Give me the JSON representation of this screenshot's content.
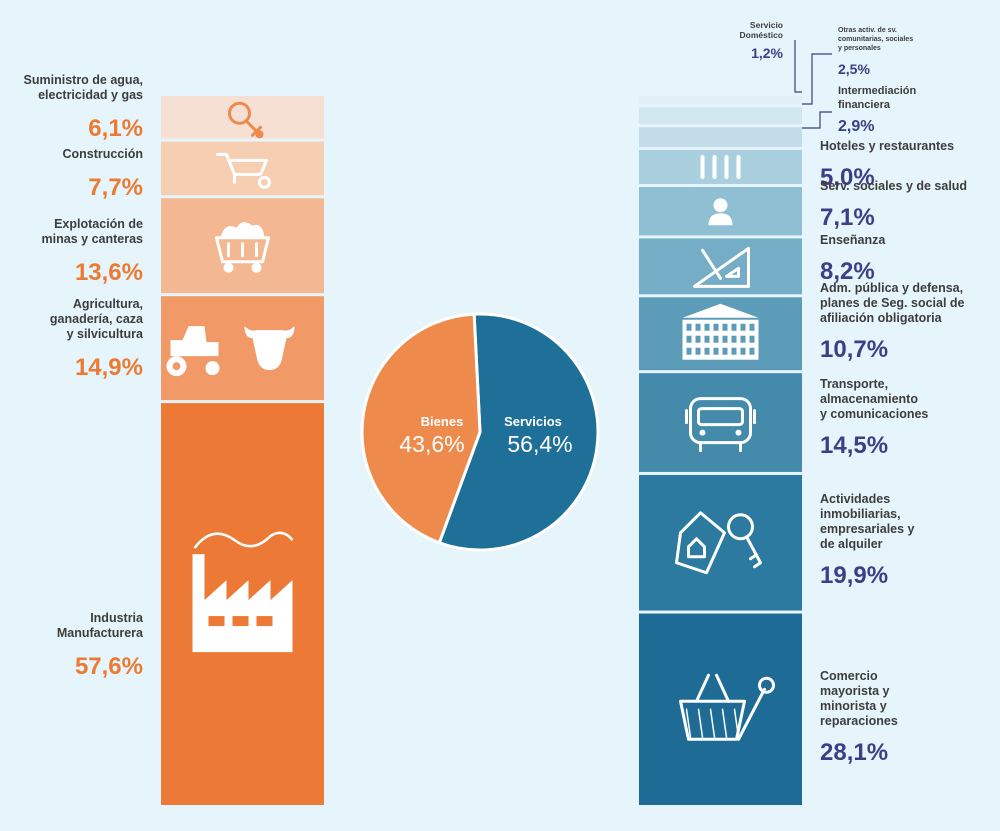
{
  "colors": {
    "background": "#e6f5fb",
    "goods_text": "#ec7a32",
    "services_text": "#3a3f87",
    "goods_pie": "#ee8a4b",
    "services_pie": "#1f7099",
    "label_dark": "#3d3d3d",
    "icon_white": "#ffffff"
  },
  "chart_data": [
    {
      "type": "pie",
      "slices": [
        {
          "label": "Bienes",
          "value": 43.6,
          "value_text": "43,6%",
          "color": "#ee8a4b"
        },
        {
          "label": "Servicios",
          "value": 56.4,
          "value_text": "56,4%",
          "color": "#1f7099"
        }
      ]
    },
    {
      "type": "bar",
      "stacked": true,
      "series_group": "Bienes",
      "segments": [
        {
          "label": "Suministro de agua, electricidad y gas",
          "lines": [
            "Suministro de agua,",
            "electricidad y gas"
          ],
          "value": 6.1,
          "value_text": "6,1%",
          "color": "#f5e0d3",
          "icon": "lightbulb-icon"
        },
        {
          "label": "Construcción",
          "lines": [
            "Construcción"
          ],
          "value": 7.7,
          "value_text": "7,7%",
          "color": "#f6cfb3",
          "icon": "wheelbarrow-icon"
        },
        {
          "label": "Explotación de minas y canteras",
          "lines": [
            "Explotación de",
            "minas y canteras"
          ],
          "value": 13.6,
          "value_text": "13,6%",
          "color": "#f3b792",
          "icon": "mine-cart-icon"
        },
        {
          "label": "Agricultura, ganadería, caza y silvicultura",
          "lines": [
            "Agricultura,",
            "ganadería, caza",
            "y silvicultura"
          ],
          "value": 14.9,
          "value_text": "14,9%",
          "color": "#f19a67",
          "icon": "tractor-cow-icon"
        },
        {
          "label": "Industria Manufacturera",
          "lines": [
            "Industria",
            "Manufacturera"
          ],
          "value": 57.6,
          "value_text": "57,6%",
          "color": "#ec7a36",
          "icon": "factory-icon"
        }
      ]
    },
    {
      "type": "bar",
      "stacked": true,
      "series_group": "Servicios",
      "segments": [
        {
          "label": "Servicio Doméstico",
          "lines": [
            "Servicio",
            "Doméstico"
          ],
          "value": 1.2,
          "value_text": "1,2%",
          "color": "#e2f0f5",
          "icon": ""
        },
        {
          "label": "Otras activ. de sv. comunitarias, sociales y personales",
          "lines": [
            "Otras activ. de sv.",
            "comunitarias, sociales",
            "y personales"
          ],
          "value": 2.5,
          "value_text": "2,5%",
          "color": "#d2e7ef",
          "icon": ""
        },
        {
          "label": "Intermediación financiera",
          "lines": [
            "Intermediación",
            "financiera"
          ],
          "value": 2.9,
          "value_text": "2,9%",
          "color": "#c2dde9",
          "icon": ""
        },
        {
          "label": "Hoteles y restaurantes",
          "lines": [
            "Hoteles y restaurantes"
          ],
          "value": 5.0,
          "value_text": "5,0%",
          "color": "#a9cfdf",
          "icon": "cutlery-icon"
        },
        {
          "label": "Serv. sociales y de salud",
          "lines": [
            "Serv. sociales y de salud"
          ],
          "value": 7.1,
          "value_text": "7,1%",
          "color": "#8fbfd3",
          "icon": "nurse-icon"
        },
        {
          "label": "Enseñanza",
          "lines": [
            "Enseñanza"
          ],
          "value": 8.2,
          "value_text": "8,2%",
          "color": "#76adc6",
          "icon": "set-square-icon"
        },
        {
          "label": "Adm. pública y defensa, planes de Seg. social de afiliación obligatoria",
          "lines": [
            "Adm. pública y defensa,",
            "planes de Seg. social de",
            "afiliación obligatoria"
          ],
          "value": 10.7,
          "value_text": "10,7%",
          "color": "#5d9cb9",
          "icon": "government-building-icon"
        },
        {
          "label": "Transporte, almacenamiento y comunicaciones",
          "lines": [
            "Transporte,",
            "almacenamiento",
            "y comunicaciones"
          ],
          "value": 14.5,
          "value_text": "14,5%",
          "color": "#438aab",
          "icon": "bus-icon"
        },
        {
          "label": "Actividades inmobiliarias, empresariales y de alquiler",
          "lines": [
            "Actividades",
            "inmobiliarias,",
            "empresariales y",
            "de alquiler"
          ],
          "value": 19.9,
          "value_text": "19,9%",
          "color": "#2c7aa0",
          "icon": "house-keys-icon"
        },
        {
          "label": "Comercio mayorista y minorista y reparaciones",
          "lines": [
            "Comercio",
            "mayorista y",
            "minorista y",
            "reparaciones"
          ],
          "value": 28.1,
          "value_text": "28,1%",
          "color": "#1e6c95",
          "icon": "basket-wrench-icon"
        }
      ]
    }
  ]
}
